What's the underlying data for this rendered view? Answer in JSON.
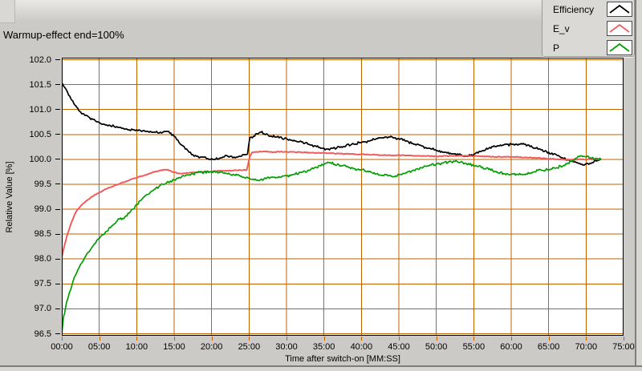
{
  "title": "Warmup-effect end=100%",
  "colors": {
    "background": "#cbcac7",
    "plot_background": "#ffffff",
    "grid": "#c06300",
    "plot_border": "#000000",
    "y_tick": "#000000",
    "x_tick": "#c06300",
    "legend_background": "#dad9d6",
    "series_efficiency": "#000000",
    "series_e_v": "#f15c5c",
    "series_p": "#009e00"
  },
  "legend": {
    "items": [
      {
        "label": "Efficiency",
        "color": "#000000"
      },
      {
        "label": "E_v",
        "color": "#f15c5c"
      },
      {
        "label": "P",
        "color": "#009e00"
      }
    ]
  },
  "chart_data": {
    "type": "line",
    "title": "Warmup-effect end=100%",
    "xlabel": "Time after switch-on [MM:SS]",
    "ylabel": "Relative Value [%]",
    "xlim_minutes": [
      0,
      75
    ],
    "ylim": [
      96.5,
      102.0
    ],
    "grid": true,
    "legend_position": "top-right",
    "x_tick_minutes": [
      0,
      5,
      10,
      15,
      20,
      25,
      30,
      35,
      40,
      45,
      50,
      55,
      60,
      65,
      70,
      75
    ],
    "x_tick_labels": [
      "00:00",
      "05:00",
      "10:00",
      "15:00",
      "20:00",
      "25:00",
      "30:00",
      "35:00",
      "40:00",
      "45:00",
      "50:00",
      "55:00",
      "60:00",
      "65:00",
      "70:00",
      "75:00"
    ],
    "y_tick_values": [
      102.0,
      101.5,
      101.0,
      100.5,
      100.0,
      99.5,
      99.0,
      98.5,
      98.0,
      97.5,
      97.0,
      96.5
    ],
    "y_tick_labels": [
      "102.0",
      "101.5",
      "101.0",
      "100.5",
      "100.0",
      "99.5",
      "99.0",
      "98.5",
      "98.0",
      "97.5",
      "97.0",
      "96.5"
    ],
    "series": [
      {
        "name": "Efficiency",
        "color": "#000000",
        "noise": 0.02,
        "points": [
          [
            0,
            101.53
          ],
          [
            0.4,
            101.45
          ],
          [
            0.8,
            101.33
          ],
          [
            1.2,
            101.22
          ],
          [
            1.6,
            101.12
          ],
          [
            2,
            101.04
          ],
          [
            2.4,
            100.97
          ],
          [
            2.8,
            100.91
          ],
          [
            3.2,
            100.88
          ],
          [
            3.6,
            100.85
          ],
          [
            4,
            100.81
          ],
          [
            4.5,
            100.77
          ],
          [
            5,
            100.74
          ],
          [
            5.5,
            100.71
          ],
          [
            6,
            100.69
          ],
          [
            6.5,
            100.67
          ],
          [
            7,
            100.66
          ],
          [
            7.5,
            100.64
          ],
          [
            8,
            100.63
          ],
          [
            8.5,
            100.61
          ],
          [
            9,
            100.6
          ],
          [
            9.5,
            100.59
          ],
          [
            10,
            100.59
          ],
          [
            10.5,
            100.58
          ],
          [
            11,
            100.57
          ],
          [
            11.5,
            100.56
          ],
          [
            12,
            100.55
          ],
          [
            12.5,
            100.54
          ],
          [
            13,
            100.53
          ],
          [
            13.5,
            100.54
          ],
          [
            14,
            100.56
          ],
          [
            14.4,
            100.53
          ],
          [
            15,
            100.46
          ],
          [
            15.5,
            100.38
          ],
          [
            16,
            100.29
          ],
          [
            16.5,
            100.21
          ],
          [
            17,
            100.14
          ],
          [
            17.5,
            100.09
          ],
          [
            18,
            100.06
          ],
          [
            18.5,
            100.05
          ],
          [
            19,
            100.04
          ],
          [
            19.5,
            100.02
          ],
          [
            20,
            100.01
          ],
          [
            20.5,
            100.0
          ],
          [
            21,
            100.02
          ],
          [
            21.5,
            100.05
          ],
          [
            22,
            100.08
          ],
          [
            22.5,
            100.06
          ],
          [
            23,
            100.04
          ],
          [
            23.5,
            100.05
          ],
          [
            24,
            100.07
          ],
          [
            24.4,
            100.09
          ],
          [
            24.8,
            100.11
          ],
          [
            25.1,
            100.43
          ],
          [
            25.6,
            100.47
          ],
          [
            26.2,
            100.51
          ],
          [
            26.6,
            100.54
          ],
          [
            27,
            100.52
          ],
          [
            27.5,
            100.49
          ],
          [
            28,
            100.47
          ],
          [
            29,
            100.44
          ],
          [
            30,
            100.41
          ],
          [
            31,
            100.38
          ],
          [
            32,
            100.35
          ],
          [
            33,
            100.3
          ],
          [
            34,
            100.26
          ],
          [
            35,
            100.22
          ],
          [
            35.6,
            100.2
          ],
          [
            36.2,
            100.22
          ],
          [
            37,
            100.25
          ],
          [
            38,
            100.28
          ],
          [
            39,
            100.31
          ],
          [
            40,
            100.34
          ],
          [
            41,
            100.37
          ],
          [
            42,
            100.41
          ],
          [
            43,
            100.44
          ],
          [
            43.8,
            100.45
          ],
          [
            44.4,
            100.43
          ],
          [
            45,
            100.41
          ],
          [
            45.4,
            100.42
          ],
          [
            46,
            100.36
          ],
          [
            47,
            100.31
          ],
          [
            48,
            100.27
          ],
          [
            49,
            100.22
          ],
          [
            50,
            100.18
          ],
          [
            51,
            100.14
          ],
          [
            52,
            100.11
          ],
          [
            53,
            100.09
          ],
          [
            54,
            100.07
          ],
          [
            55,
            100.1
          ],
          [
            56,
            100.16
          ],
          [
            57,
            100.22
          ],
          [
            58,
            100.26
          ],
          [
            59,
            100.29
          ],
          [
            60,
            100.3
          ],
          [
            60.6,
            100.31
          ],
          [
            61.2,
            100.3
          ],
          [
            61.6,
            100.32
          ],
          [
            62.2,
            100.28
          ],
          [
            63,
            100.23
          ],
          [
            64,
            100.19
          ],
          [
            65,
            100.14
          ],
          [
            66,
            100.09
          ],
          [
            67,
            100.02
          ],
          [
            68,
            99.96
          ],
          [
            69,
            99.91
          ],
          [
            69.6,
            99.89
          ],
          [
            70.2,
            99.91
          ],
          [
            70.8,
            99.94
          ],
          [
            71.4,
            99.97
          ],
          [
            72,
            100.0
          ]
        ]
      },
      {
        "name": "E_v",
        "color": "#f15c5c",
        "noise": 0.008,
        "points": [
          [
            0,
            98.05
          ],
          [
            0.4,
            98.3
          ],
          [
            0.8,
            98.52
          ],
          [
            1.2,
            98.7
          ],
          [
            1.6,
            98.85
          ],
          [
            2,
            98.97
          ],
          [
            2.5,
            99.06
          ],
          [
            3,
            99.13
          ],
          [
            3.5,
            99.19
          ],
          [
            4,
            99.25
          ],
          [
            4.5,
            99.29
          ],
          [
            5,
            99.33
          ],
          [
            5.5,
            99.37
          ],
          [
            6,
            99.41
          ],
          [
            6.5,
            99.44
          ],
          [
            7,
            99.47
          ],
          [
            7.5,
            99.5
          ],
          [
            8,
            99.53
          ],
          [
            8.5,
            99.55
          ],
          [
            9,
            99.58
          ],
          [
            9.5,
            99.61
          ],
          [
            10,
            99.63
          ],
          [
            10.5,
            99.66
          ],
          [
            11,
            99.68
          ],
          [
            11.5,
            99.7
          ],
          [
            12,
            99.73
          ],
          [
            12.5,
            99.75
          ],
          [
            13,
            99.77
          ],
          [
            13.5,
            99.79
          ],
          [
            14,
            99.79
          ],
          [
            14.5,
            99.77
          ],
          [
            15,
            99.74
          ],
          [
            15.5,
            99.72
          ],
          [
            16,
            99.71
          ],
          [
            16.5,
            99.72
          ],
          [
            17,
            99.73
          ],
          [
            17.5,
            99.74
          ],
          [
            18,
            99.74
          ],
          [
            19,
            99.75
          ],
          [
            20,
            99.76
          ],
          [
            21,
            99.77
          ],
          [
            22,
            99.77
          ],
          [
            23,
            99.78
          ],
          [
            24,
            99.78
          ],
          [
            24.7,
            99.79
          ],
          [
            25.1,
            100.05
          ],
          [
            25.4,
            100.14
          ],
          [
            26,
            100.15
          ],
          [
            27,
            100.16
          ],
          [
            28,
            100.15
          ],
          [
            30,
            100.15
          ],
          [
            32,
            100.14
          ],
          [
            34,
            100.13
          ],
          [
            36,
            100.12
          ],
          [
            38,
            100.11
          ],
          [
            40,
            100.1
          ],
          [
            42,
            100.09
          ],
          [
            44,
            100.08
          ],
          [
            46,
            100.08
          ],
          [
            48,
            100.07
          ],
          [
            50,
            100.06
          ],
          [
            52,
            100.07
          ],
          [
            54,
            100.07
          ],
          [
            56,
            100.06
          ],
          [
            58,
            100.05
          ],
          [
            60,
            100.05
          ],
          [
            62,
            100.04
          ],
          [
            64,
            100.02
          ],
          [
            65.5,
            100.01
          ],
          [
            66.5,
            100.0
          ],
          [
            68,
            99.99
          ],
          [
            69.5,
            100.0
          ],
          [
            71,
            100.0
          ],
          [
            72,
            100.01
          ]
        ]
      },
      {
        "name": "P",
        "color": "#009e00",
        "noise": 0.025,
        "points": [
          [
            0,
            96.52
          ],
          [
            0.25,
            96.85
          ],
          [
            0.5,
            97.02
          ],
          [
            0.75,
            97.18
          ],
          [
            1,
            97.32
          ],
          [
            1.5,
            97.55
          ],
          [
            2,
            97.73
          ],
          [
            2.5,
            97.89
          ],
          [
            3,
            98.01
          ],
          [
            3.5,
            98.13
          ],
          [
            4,
            98.23
          ],
          [
            4.5,
            98.32
          ],
          [
            5,
            98.41
          ],
          [
            5.5,
            98.49
          ],
          [
            6,
            98.56
          ],
          [
            6.5,
            98.63
          ],
          [
            7,
            98.7
          ],
          [
            7.4,
            98.77
          ],
          [
            7.7,
            98.8
          ],
          [
            8,
            98.79
          ],
          [
            8.4,
            98.84
          ],
          [
            9,
            98.92
          ],
          [
            9.5,
            99.0
          ],
          [
            10,
            99.1
          ],
          [
            10.5,
            99.17
          ],
          [
            11,
            99.25
          ],
          [
            11.5,
            99.3
          ],
          [
            12,
            99.36
          ],
          [
            12.5,
            99.41
          ],
          [
            13,
            99.46
          ],
          [
            13.5,
            99.5
          ],
          [
            14,
            99.53
          ],
          [
            14.5,
            99.56
          ],
          [
            15,
            99.59
          ],
          [
            15.5,
            99.62
          ],
          [
            16,
            99.65
          ],
          [
            16.5,
            99.67
          ],
          [
            17,
            99.69
          ],
          [
            17.5,
            99.71
          ],
          [
            18,
            99.73
          ],
          [
            19,
            99.74
          ],
          [
            20,
            99.75
          ],
          [
            21,
            99.74
          ],
          [
            22,
            99.72
          ],
          [
            23,
            99.69
          ],
          [
            24,
            99.66
          ],
          [
            25,
            99.63
          ],
          [
            25.5,
            99.6
          ],
          [
            26,
            99.58
          ],
          [
            26.5,
            99.59
          ],
          [
            27,
            99.61
          ],
          [
            28,
            99.64
          ],
          [
            29,
            99.65
          ],
          [
            30,
            99.67
          ],
          [
            31,
            99.7
          ],
          [
            32,
            99.74
          ],
          [
            33,
            99.78
          ],
          [
            34,
            99.84
          ],
          [
            35,
            99.9
          ],
          [
            35.5,
            99.94
          ],
          [
            36,
            99.92
          ],
          [
            37,
            99.89
          ],
          [
            38,
            99.85
          ],
          [
            39,
            99.81
          ],
          [
            40,
            99.79
          ],
          [
            41,
            99.75
          ],
          [
            42,
            99.71
          ],
          [
            43,
            99.68
          ],
          [
            44,
            99.66
          ],
          [
            44.6,
            99.67
          ],
          [
            45.2,
            99.7
          ],
          [
            46,
            99.73
          ],
          [
            47,
            99.78
          ],
          [
            48,
            99.83
          ],
          [
            49,
            99.87
          ],
          [
            50,
            99.9
          ],
          [
            51,
            99.93
          ],
          [
            52,
            99.95
          ],
          [
            52.8,
            99.96
          ],
          [
            53.5,
            99.94
          ],
          [
            54,
            99.92
          ],
          [
            55,
            99.88
          ],
          [
            56,
            99.84
          ],
          [
            57,
            99.8
          ],
          [
            58,
            99.76
          ],
          [
            59,
            99.72
          ],
          [
            60,
            99.7
          ],
          [
            61,
            99.69
          ],
          [
            62,
            99.71
          ],
          [
            63,
            99.75
          ],
          [
            64,
            99.78
          ],
          [
            65,
            99.8
          ],
          [
            66,
            99.83
          ],
          [
            67,
            99.88
          ],
          [
            68,
            99.96
          ],
          [
            68.8,
            100.03
          ],
          [
            69.4,
            100.07
          ],
          [
            70,
            100.05
          ],
          [
            70.6,
            100.03
          ],
          [
            71.2,
            100.01
          ],
          [
            72,
            100.0
          ]
        ]
      }
    ]
  }
}
